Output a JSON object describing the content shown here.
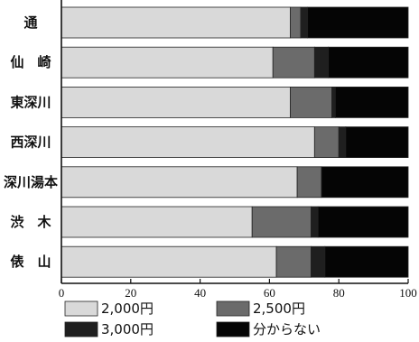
{
  "chart_data": {
    "type": "bar",
    "orientation": "horizontal",
    "stacked": true,
    "categories": [
      "通",
      "仙　崎",
      "東深川",
      "西深川",
      "深川湯本",
      "渋　木",
      "俵　山"
    ],
    "series": [
      {
        "name": "2,000円",
        "color": "#d9d9d9",
        "values": [
          66,
          61,
          66,
          73,
          68,
          55,
          62
        ]
      },
      {
        "name": "2,500円",
        "color": "#6b6b6b",
        "values": [
          3,
          12,
          12,
          7,
          7,
          17,
          10
        ]
      },
      {
        "name": "3,000円",
        "color": "#1f1f1f",
        "values": [
          2,
          4,
          1,
          2,
          0,
          2,
          4
        ]
      },
      {
        "name": "分からない",
        "color": "#050505",
        "values": [
          29,
          23,
          21,
          18,
          25,
          26,
          24
        ]
      }
    ],
    "xlim": [
      0,
      100
    ],
    "xticks": [
      "0",
      "20",
      "40",
      "60",
      "80",
      "100"
    ],
    "grid": false,
    "legend_position": "bottom"
  }
}
